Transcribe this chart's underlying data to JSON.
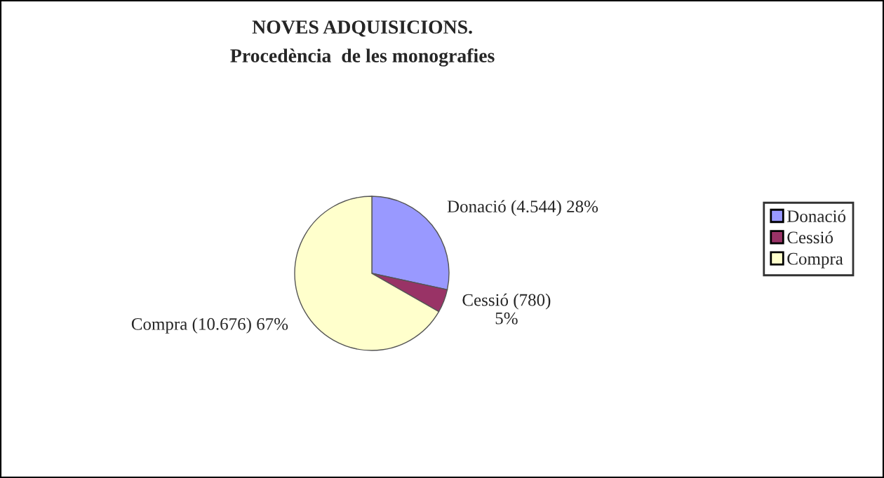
{
  "chart_data": {
    "type": "pie",
    "title": "NOVES ADQUISICIONS.",
    "subtitle": "Procedència  de les monografies",
    "categories": [
      "Donació",
      "Cessió",
      "Compra"
    ],
    "values": [
      4544,
      780,
      10676
    ],
    "colors": [
      "#9999ff",
      "#993366",
      "#ffffcc"
    ],
    "value_labels": [
      "Donació (4.544) 28%",
      "Cessió (780)\n5%",
      "Compra (10.676) 67%"
    ],
    "legend": "right"
  }
}
